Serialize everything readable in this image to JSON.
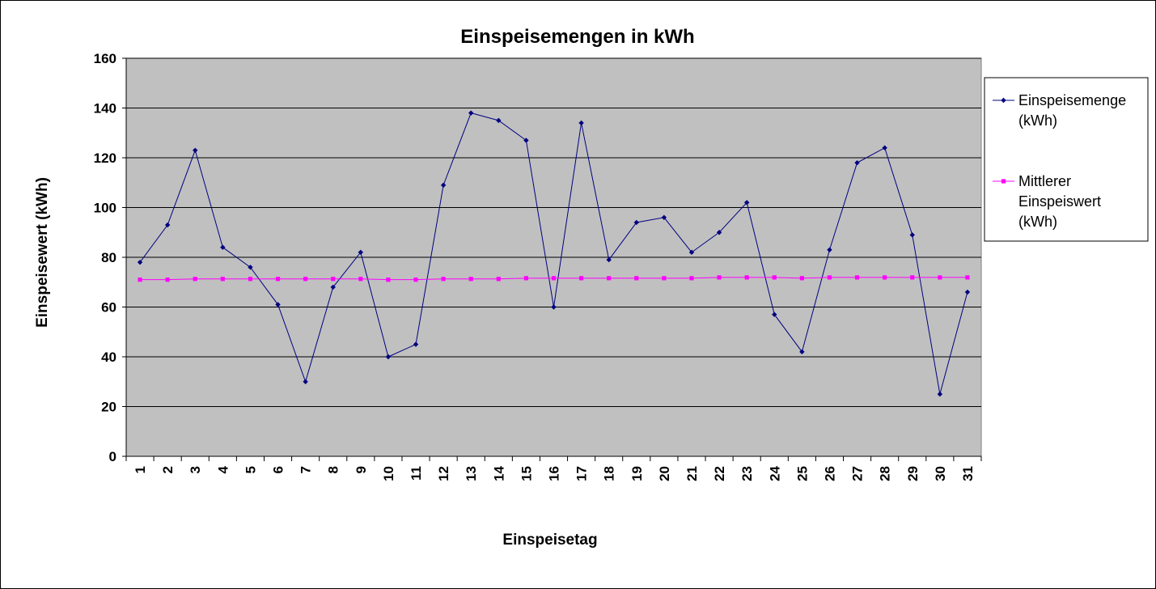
{
  "chart_data": {
    "type": "line",
    "title": "Einspeisemengen in kWh",
    "xlabel": "Einspeisetag",
    "ylabel": "Einspeisewert (kWh)",
    "ylim": [
      0,
      160
    ],
    "yticks": [
      0,
      20,
      40,
      60,
      80,
      100,
      120,
      140,
      160
    ],
    "categories": [
      "1",
      "2",
      "3",
      "4",
      "5",
      "6",
      "7",
      "8",
      "9",
      "10",
      "11",
      "12",
      "13",
      "14",
      "15",
      "16",
      "17",
      "18",
      "19",
      "20",
      "21",
      "22",
      "23",
      "24",
      "25",
      "26",
      "27",
      "28",
      "29",
      "30",
      "31"
    ],
    "grid": true,
    "legend_position": "right",
    "series": [
      {
        "name": "Einspeisemenge (kWh)",
        "legend_lines": [
          "Einspeisemenge",
          "(kWh)"
        ],
        "color": "#000080",
        "marker": "diamond",
        "values": [
          78,
          93,
          123,
          84,
          76,
          61,
          30,
          68,
          82,
          40,
          45,
          109,
          138,
          135,
          127,
          60,
          134,
          79,
          94,
          96,
          82,
          90,
          102,
          57,
          42,
          83,
          118,
          124,
          89,
          25,
          66
        ]
      },
      {
        "name": "Mittlerer Einspeiswert (kWh)",
        "legend_lines": [
          "Mittlerer",
          "Einspeiswert",
          "(kWh)"
        ],
        "color": "#FF00FF",
        "marker": "square",
        "values": [
          71,
          71,
          71.3,
          71.3,
          71.3,
          71.3,
          71.3,
          71.3,
          71.3,
          71,
          71,
          71.3,
          71.3,
          71.3,
          71.6,
          71.6,
          71.6,
          71.6,
          71.6,
          71.6,
          71.6,
          71.9,
          71.9,
          71.9,
          71.6,
          71.9,
          71.9,
          71.9,
          71.9,
          71.9,
          71.9
        ]
      }
    ]
  },
  "colors": {
    "plot_background": "#C0C0C0",
    "gridline": "#000000"
  }
}
